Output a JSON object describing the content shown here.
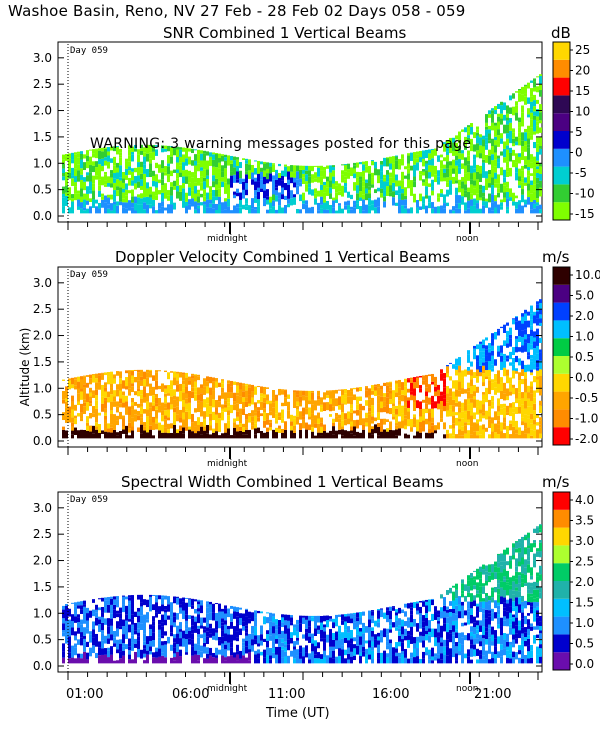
{
  "header": {
    "title": "Washoe Basin, Reno, NV  27 Feb - 28 Feb 02 Days 058 - 059"
  },
  "warning": "WARNING: 3 warning messages posted for this page",
  "axes": {
    "ylabel": "Altitude (km)",
    "xlabel": "Time (UT)",
    "yticks": [
      "0.0",
      "0.5",
      "1.0",
      "1.5",
      "2.0",
      "2.5",
      "3.0"
    ],
    "xticks": [
      "01:00",
      "06:00",
      "11:00",
      "16:00",
      "21:00"
    ],
    "markers": [
      "midnight",
      "noon"
    ],
    "day_marker": "Day 059"
  },
  "colors": {
    "snr": [
      "#7fff00",
      "#32cd32",
      "#00ced1",
      "#1e90ff",
      "#0000cd",
      "#4b0082",
      "#2e0854",
      "#ff0000",
      "#ff8c00",
      "#ffd700"
    ],
    "doppler": [
      "#ff0000",
      "#ff8c00",
      "#ffa500",
      "#ffd700",
      "#adff2f",
      "#00cc44",
      "#00bfff",
      "#0040ff",
      "#4b0082",
      "#2e0000"
    ],
    "width": [
      "#6a0dad",
      "#0000cd",
      "#1e90ff",
      "#00bfff",
      "#20b2aa",
      "#00cc66",
      "#adff2f",
      "#ffd700",
      "#ff8c00",
      "#ff0000"
    ]
  },
  "chart_data": [
    {
      "type": "heatmap",
      "title": "SNR Combined 1 Vertical Beams",
      "unit": "dB",
      "colorbar_labels": [
        "25",
        "20",
        "15",
        "10",
        "5",
        "0",
        "-5",
        "-10",
        "-15"
      ],
      "ylim": [
        0,
        3.3
      ],
      "xlim": [
        "00:00",
        "24:00"
      ],
      "data_top_km": 1.3
    },
    {
      "type": "heatmap",
      "title": "Doppler Velocity Combined 1 Vertical Beams",
      "unit": "m/s",
      "colorbar_labels": [
        "10.0",
        "5.0",
        "2.0",
        "1.0",
        "0.5",
        "0.0",
        "-0.5",
        "-1.0",
        "-2.0"
      ],
      "ylim": [
        0,
        3.3
      ],
      "xlim": [
        "00:00",
        "24:00"
      ],
      "data_top_km": 1.3
    },
    {
      "type": "heatmap",
      "title": "Spectral Width Combined 1 Vertical Beams",
      "unit": "m/s",
      "colorbar_labels": [
        "4.0",
        "3.5",
        "3.0",
        "2.5",
        "2.0",
        "1.5",
        "1.0",
        "0.5",
        "0.0"
      ],
      "ylim": [
        0,
        3.3
      ],
      "xlim": [
        "00:00",
        "24:00"
      ],
      "data_top_km": 1.3
    }
  ]
}
